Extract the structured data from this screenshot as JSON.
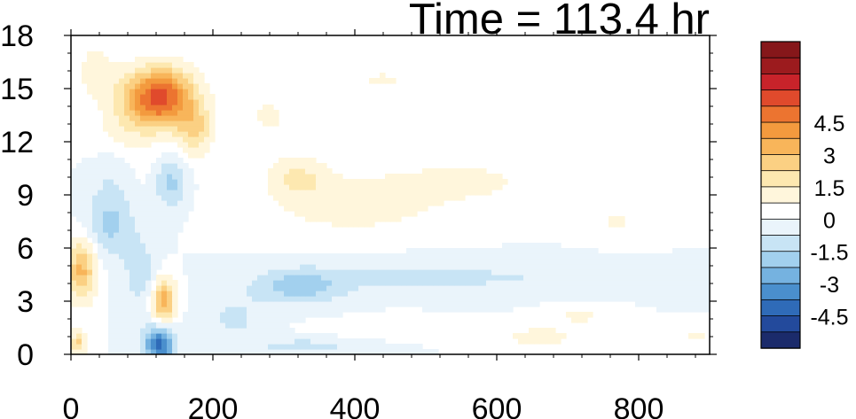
{
  "chart_data": {
    "type": "heatmap",
    "title": "Time = 113.4 hr",
    "xlabel": "",
    "ylabel": "",
    "xlim": [
      0,
      900
    ],
    "ylim": [
      0,
      18
    ],
    "x_ticks": [
      0,
      200,
      400,
      600,
      800
    ],
    "y_ticks": [
      0,
      3,
      6,
      9,
      12,
      15,
      18
    ],
    "grid": false,
    "colorbar": {
      "placement": "right",
      "labels": [
        "4.5",
        "3",
        "1.5",
        "0",
        "-1.5",
        "-3",
        "-4.5"
      ],
      "label_values": [
        4.5,
        3,
        1.5,
        0,
        -1.5,
        -3,
        -4.5
      ],
      "levels": [
        -5.25,
        -4.5,
        -3.75,
        -3,
        -2.25,
        -1.5,
        -0.75,
        0,
        0.75,
        1.5,
        2.25,
        3,
        3.75,
        4.5,
        5.25
      ],
      "colors": [
        "#1b2b6b",
        "#234a9c",
        "#2f6bb8",
        "#4a8fcd",
        "#75b2e0",
        "#a2d0ee",
        "#c8e4f5",
        "#eaf4fb",
        "#ffffff",
        "#fff6dc",
        "#fde8b0",
        "#fbd083",
        "#f8b55a",
        "#f39a3e",
        "#ec7430",
        "#e04a2c",
        "#c8232a",
        "#9c1b1e",
        "#86171a"
      ]
    },
    "features": [
      {
        "x": 125,
        "y": 14.5,
        "sx": 35,
        "sy": 1.2,
        "value": 5.6
      },
      {
        "x": 175,
        "y": 12.6,
        "sx": 18,
        "sy": 1.0,
        "value": 2.0
      },
      {
        "x": 15,
        "y": 4.8,
        "sx": 15,
        "sy": 1.3,
        "value": 3.2
      },
      {
        "x": 130,
        "y": 3.0,
        "sx": 12,
        "sy": 1.0,
        "value": 3.6
      },
      {
        "x": 125,
        "y": 0.6,
        "sx": 15,
        "sy": 0.8,
        "value": -4.2
      },
      {
        "x": 55,
        "y": 7.5,
        "sx": 25,
        "sy": 1.4,
        "value": -1.8
      },
      {
        "x": 140,
        "y": 9.7,
        "sx": 15,
        "sy": 1.0,
        "value": -1.8
      },
      {
        "x": 100,
        "y": 4.5,
        "sx": 18,
        "sy": 1.4,
        "value": -1.2
      },
      {
        "x": 70,
        "y": 12.0,
        "sx": 30,
        "sy": 2.0,
        "value": 0.9
      },
      {
        "x": 35,
        "y": 16.0,
        "sx": 18,
        "sy": 1.0,
        "value": 1.3
      },
      {
        "x": 60,
        "y": 10.5,
        "sx": 22,
        "sy": 1.0,
        "value": -1.0
      },
      {
        "x": 320,
        "y": 3.8,
        "sx": 45,
        "sy": 0.7,
        "value": -1.8
      },
      {
        "x": 480,
        "y": 4.5,
        "sx": 120,
        "sy": 0.7,
        "value": -0.9
      },
      {
        "x": 720,
        "y": 4.2,
        "sx": 120,
        "sy": 0.5,
        "value": -0.5
      },
      {
        "x": 400,
        "y": 8.5,
        "sx": 100,
        "sy": 1.4,
        "value": 1.1
      },
      {
        "x": 320,
        "y": 10.0,
        "sx": 30,
        "sy": 0.8,
        "value": 1.3
      },
      {
        "x": 560,
        "y": 9.8,
        "sx": 70,
        "sy": 0.8,
        "value": 0.9
      },
      {
        "x": 770,
        "y": 7.5,
        "sx": 40,
        "sy": 0.6,
        "value": 0.8
      },
      {
        "x": 440,
        "y": 15.5,
        "sx": 50,
        "sy": 0.7,
        "value": 0.8
      },
      {
        "x": 280,
        "y": 13.5,
        "sx": 40,
        "sy": 1.5,
        "value": 0.8
      },
      {
        "x": 660,
        "y": 1.0,
        "sx": 50,
        "sy": 0.5,
        "value": 1.0
      },
      {
        "x": 450,
        "y": 1.5,
        "sx": 60,
        "sy": 0.4,
        "value": 0.8
      },
      {
        "x": 330,
        "y": 0.5,
        "sx": 60,
        "sy": 0.35,
        "value": -1.0
      },
      {
        "x": 720,
        "y": 2.2,
        "sx": 30,
        "sy": 0.4,
        "value": 0.9
      },
      {
        "x": 880,
        "y": 1.0,
        "sx": 20,
        "sy": 0.4,
        "value": 0.9
      },
      {
        "x": 10,
        "y": 0.7,
        "sx": 8,
        "sy": 0.5,
        "value": 2.5
      },
      {
        "x": 230,
        "y": 2.0,
        "sx": 30,
        "sy": 1.0,
        "value": -0.9
      }
    ]
  }
}
